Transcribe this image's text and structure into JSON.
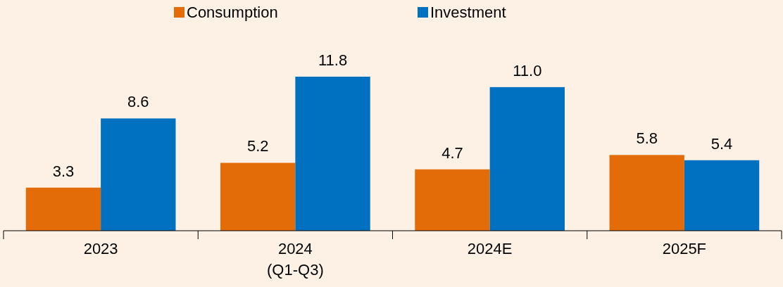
{
  "chart_data": {
    "type": "bar",
    "categories": [
      "2023",
      "2024\n(Q1-Q3)",
      "2024E",
      "2025F"
    ],
    "series": [
      {
        "name": "Consumption",
        "color": "#e36c09",
        "values": [
          3.3,
          5.2,
          4.7,
          5.8
        ],
        "value_labels": [
          "3.3",
          "5.2",
          "4.7",
          "5.8"
        ]
      },
      {
        "name": "Investment",
        "color": "#0070c0",
        "values": [
          8.6,
          11.8,
          11.0,
          5.4
        ],
        "value_labels": [
          "8.6",
          "11.8",
          "11.0",
          "5.4"
        ]
      }
    ],
    "legend": "top",
    "grid": false
  }
}
